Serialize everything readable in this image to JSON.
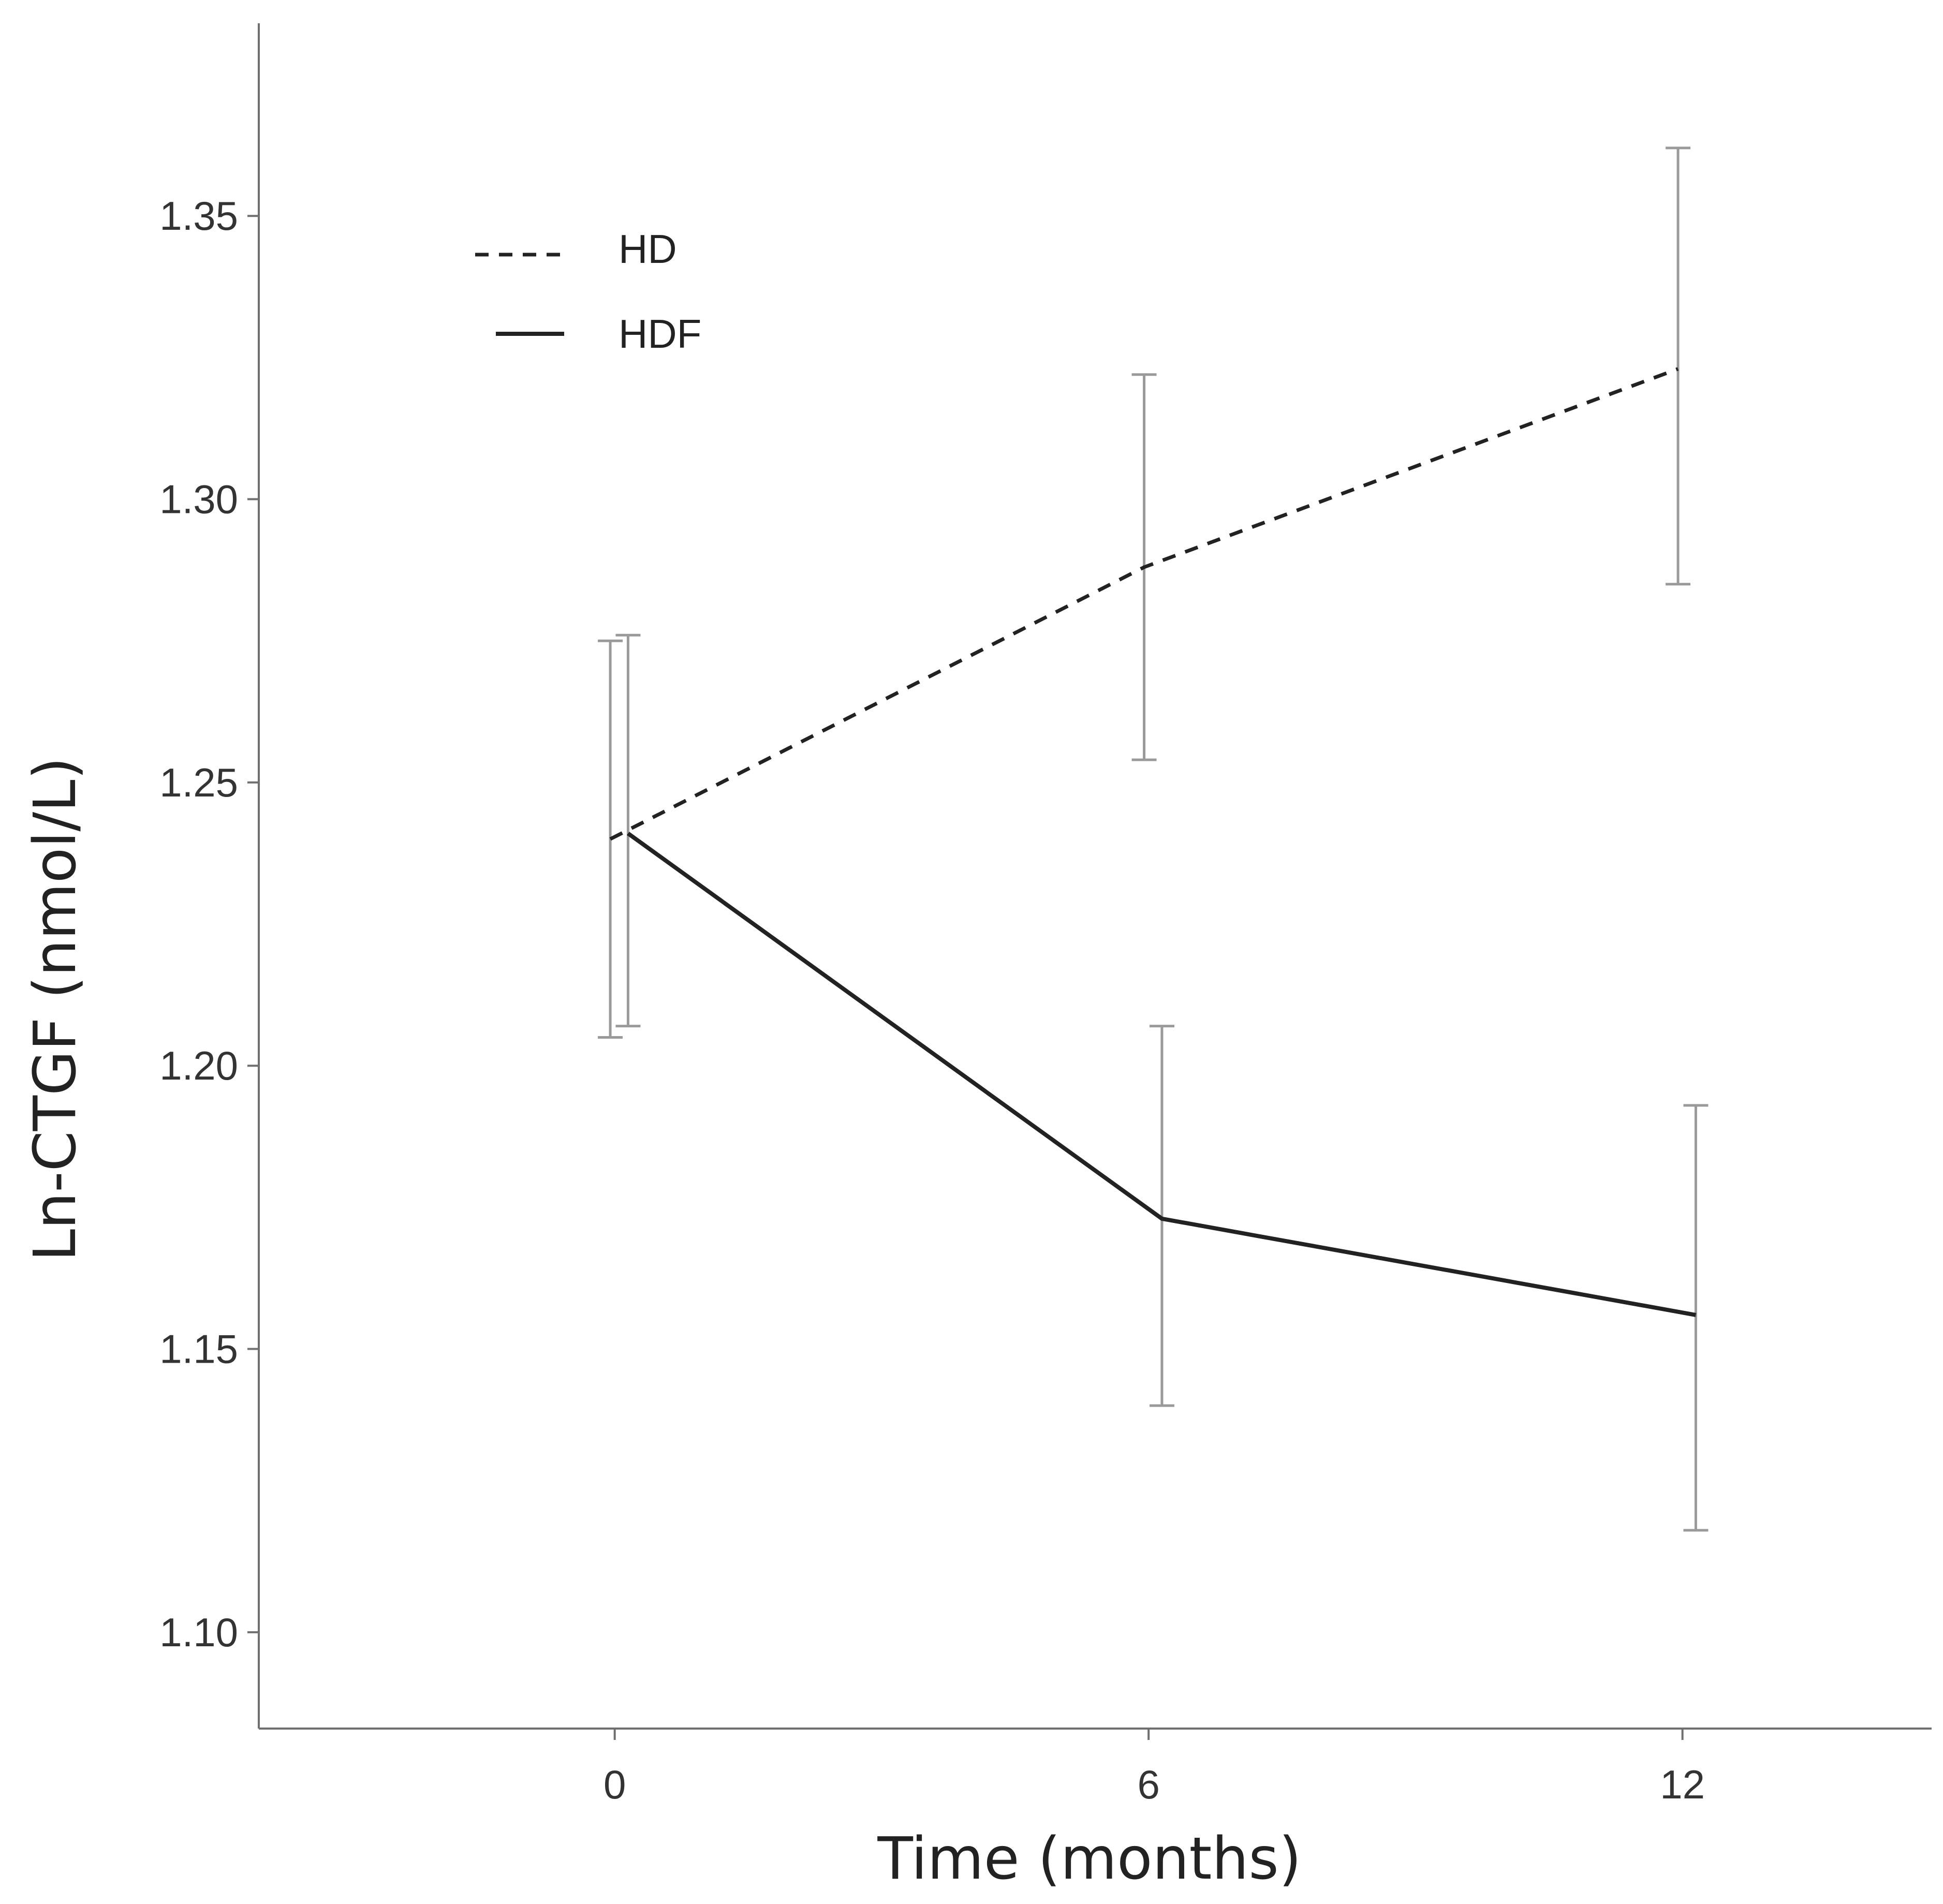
{
  "chart_data": {
    "type": "line",
    "title": "",
    "xlabel": "Time (months)",
    "ylabel": "Ln-CTGF (nmol/L)",
    "x": [
      0,
      6,
      12
    ],
    "x_ticks": [
      "0",
      "6",
      "12"
    ],
    "xlim": [
      -4,
      14.8
    ],
    "ylim": [
      1.083,
      1.384
    ],
    "y_ticks": [
      "1.10",
      "1.15",
      "1.20",
      "1.25",
      "1.30",
      "1.35"
    ],
    "grid": false,
    "legend_position": "top-left",
    "series": [
      {
        "name": "HD",
        "line_style": "dashed",
        "x_plot": [
          -0.05,
          5.95,
          11.95
        ],
        "values": [
          1.24,
          1.288,
          1.323
        ],
        "error_lower": [
          1.205,
          1.254,
          1.285
        ],
        "error_upper": [
          1.275,
          1.322,
          1.362
        ],
        "color": "#222222"
      },
      {
        "name": "HDF",
        "line_style": "solid",
        "x_plot": [
          0.15,
          6.15,
          12.15
        ],
        "values": [
          1.241,
          1.173,
          1.156
        ],
        "error_lower": [
          1.207,
          1.14,
          1.118
        ],
        "error_upper": [
          1.276,
          1.207,
          1.193
        ],
        "color": "#222222"
      }
    ],
    "error_bar_color": "#9a9a9a"
  }
}
